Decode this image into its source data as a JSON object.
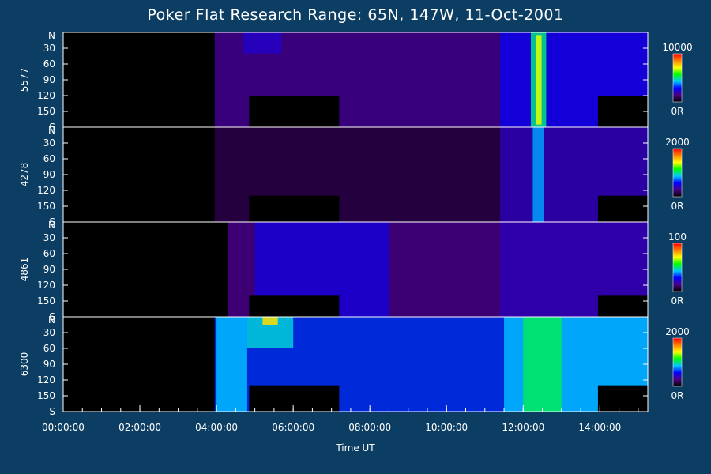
{
  "chart_data": {
    "type": "heatmap",
    "title": "Poker Flat Research Range: 65N, 147W, 11-Oct-2001",
    "xlabel": "Time UT",
    "xlim_hours": [
      0,
      15.25
    ],
    "x_ticks": [
      {
        "hour": 0,
        "label": "00:00:00"
      },
      {
        "hour": 2,
        "label": "02:00:00"
      },
      {
        "hour": 4,
        "label": "04:00:00"
      },
      {
        "hour": 6,
        "label": "06:00:00"
      },
      {
        "hour": 8,
        "label": "08:00:00"
      },
      {
        "hour": 10,
        "label": "10:00:00"
      },
      {
        "hour": 12,
        "label": "12:00:00"
      },
      {
        "hour": 14,
        "label": "14:00:00"
      }
    ],
    "y_scan_deg": [
      0,
      180
    ],
    "y_ticks": [
      {
        "deg": 0,
        "label": "N"
      },
      {
        "deg": 30,
        "label": "30"
      },
      {
        "deg": 60,
        "label": "60"
      },
      {
        "deg": 90,
        "label": "90"
      },
      {
        "deg": 120,
        "label": "120"
      },
      {
        "deg": 150,
        "label": "150"
      },
      {
        "deg": 180,
        "label": "S"
      }
    ],
    "colorscale": [
      "#000000",
      "#4b0082",
      "#0000ff",
      "#00c8ff",
      "#00ff00",
      "#ffff00",
      "#ff8000",
      "#ff0000"
    ],
    "series": [
      {
        "name": "5577",
        "cbar_max": "10000",
        "cbar_min": "0R",
        "blobs": [
          {
            "t0": 3.95,
            "t1": 15.25,
            "y0": 0,
            "y1": 180,
            "v": 0.16
          },
          {
            "t0": 4.7,
            "t1": 5.7,
            "y0": 0,
            "y1": 40,
            "v": 0.22
          },
          {
            "t0": 11.4,
            "t1": 15.25,
            "y0": 0,
            "y1": 180,
            "v": 0.26
          },
          {
            "t0": 12.2,
            "t1": 12.6,
            "y0": 0,
            "y1": 180,
            "v": 0.5
          },
          {
            "t0": 12.33,
            "t1": 12.48,
            "y0": 5,
            "y1": 175,
            "v": 0.7
          }
        ],
        "masks": [
          {
            "t0": 0,
            "t1": 3.95,
            "y0": 0,
            "y1": 180
          },
          {
            "t0": 4.85,
            "t1": 7.2,
            "y0": 120,
            "y1": 180
          },
          {
            "t0": 13.95,
            "t1": 15.25,
            "y0": 120,
            "y1": 180
          }
        ]
      },
      {
        "name": "4278",
        "cbar_max": "2000",
        "cbar_min": "0R",
        "blobs": [
          {
            "t0": 3.95,
            "t1": 15.25,
            "y0": 0,
            "y1": 180,
            "v": 0.08
          },
          {
            "t0": 11.4,
            "t1": 15.25,
            "y0": 0,
            "y1": 180,
            "v": 0.2
          },
          {
            "t0": 12.25,
            "t1": 12.55,
            "y0": 0,
            "y1": 180,
            "v": 0.4
          }
        ],
        "masks": [
          {
            "t0": 0,
            "t1": 3.95,
            "y0": 0,
            "y1": 180
          },
          {
            "t0": 4.85,
            "t1": 7.2,
            "y0": 130,
            "y1": 180
          },
          {
            "t0": 13.95,
            "t1": 15.25,
            "y0": 130,
            "y1": 180
          }
        ]
      },
      {
        "name": "4861",
        "cbar_max": "100",
        "cbar_min": "0R",
        "blobs": [
          {
            "t0": 4.3,
            "t1": 15.25,
            "y0": 0,
            "y1": 180,
            "v": 0.15
          },
          {
            "t0": 5.0,
            "t1": 8.5,
            "y0": 0,
            "y1": 180,
            "v": 0.24
          },
          {
            "t0": 11.4,
            "t1": 15.25,
            "y0": 0,
            "y1": 180,
            "v": 0.2
          }
        ],
        "masks": [
          {
            "t0": 0,
            "t1": 4.3,
            "y0": 0,
            "y1": 180
          },
          {
            "t0": 4.85,
            "t1": 7.2,
            "y0": 140,
            "y1": 180
          },
          {
            "t0": 13.95,
            "t1": 15.25,
            "y0": 140,
            "y1": 180
          }
        ]
      },
      {
        "name": "6300",
        "cbar_max": "2000",
        "cbar_min": "0R",
        "blobs": [
          {
            "t0": 3.95,
            "t1": 15.25,
            "y0": 0,
            "y1": 180,
            "v": 0.32
          },
          {
            "t0": 4.0,
            "t1": 4.8,
            "y0": 0,
            "y1": 180,
            "v": 0.42
          },
          {
            "t0": 4.8,
            "t1": 6.0,
            "y0": 0,
            "y1": 60,
            "v": 0.45
          },
          {
            "t0": 5.2,
            "t1": 5.6,
            "y0": 0,
            "y1": 15,
            "v": 0.75
          },
          {
            "t0": 11.5,
            "t1": 15.25,
            "y0": 0,
            "y1": 180,
            "v": 0.42
          },
          {
            "t0": 12.0,
            "t1": 13.0,
            "y0": 0,
            "y1": 180,
            "v": 0.52
          }
        ],
        "masks": [
          {
            "t0": 0,
            "t1": 3.95,
            "y0": 0,
            "y1": 180
          },
          {
            "t0": 4.85,
            "t1": 7.2,
            "y0": 130,
            "y1": 180
          },
          {
            "t0": 13.95,
            "t1": 15.25,
            "y0": 130,
            "y1": 180
          }
        ]
      }
    ]
  }
}
